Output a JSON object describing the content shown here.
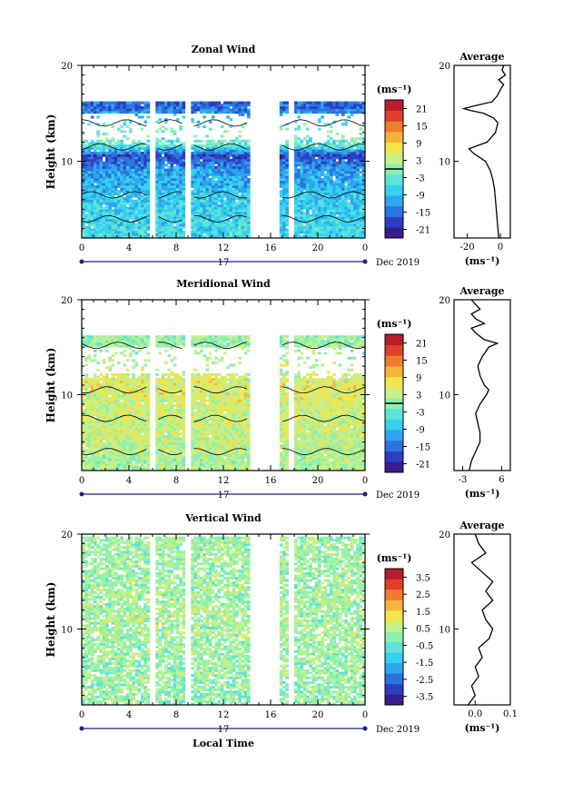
{
  "figure": {
    "shared_x_label": "Local Time",
    "date_label": "Dec 2019",
    "day_label": "17",
    "x_ticks": [
      "0",
      "4",
      "8",
      "12",
      "16",
      "20",
      "0"
    ]
  },
  "colors": {
    "colormap": [
      "#3b1c8c",
      "#2c3fc4",
      "#2a74e0",
      "#2fa6ec",
      "#34d1f0",
      "#5fe3d9",
      "#8ef0b0",
      "#c6f08a",
      "#f2e44a",
      "#f8b43a",
      "#f07c2e",
      "#e0402a",
      "#b81e2a"
    ],
    "contour": "#000000"
  },
  "chart_data": [
    {
      "type": "heatmap",
      "title": "Zonal Wind",
      "ylabel": "Height (km)",
      "y_ticks": [
        "20",
        "10"
      ],
      "ylim": [
        2,
        20
      ],
      "xlim": [
        0,
        24
      ],
      "colorbar_unit": "(ms⁻¹)",
      "colorbar_ticks": [
        "21",
        "15",
        "9",
        "3",
        "-3",
        "-9",
        "-15",
        "-21"
      ],
      "colorbar_range": [
        -24,
        24
      ],
      "data_gaps_hours": [
        [
          5.8,
          6.2
        ],
        [
          8.7,
          9.3
        ],
        [
          14.2,
          16.8
        ],
        [
          17.6,
          18.0
        ]
      ],
      "field_summary": [
        {
          "height_km": 3,
          "value": -6
        },
        {
          "height_km": 6,
          "value": -8
        },
        {
          "height_km": 9,
          "value": -12
        },
        {
          "height_km": 10.5,
          "value": -18
        },
        {
          "height_km": 11.5,
          "value": -4
        },
        {
          "height_km": 13,
          "value": 0
        },
        {
          "height_km": 15.5,
          "value": -16
        }
      ],
      "average_profile": {
        "title": "Average",
        "xlabel": "(ms⁻¹)",
        "x_ticks": [
          "-20",
          "0"
        ],
        "y_ticks": [
          "20",
          "10"
        ],
        "xlim": [
          -28,
          6
        ],
        "points": [
          [
            -1,
            2
          ],
          [
            -1.5,
            3
          ],
          [
            -2,
            4
          ],
          [
            -2.5,
            5
          ],
          [
            -3,
            6
          ],
          [
            -3.5,
            7
          ],
          [
            -4.5,
            8
          ],
          [
            -6,
            9
          ],
          [
            -9,
            10
          ],
          [
            -16,
            10.8
          ],
          [
            -19,
            11.3
          ],
          [
            -8,
            12
          ],
          [
            -3,
            13
          ],
          [
            -1.5,
            14
          ],
          [
            -4,
            14.5
          ],
          [
            -10,
            15
          ],
          [
            -18,
            15.3
          ],
          [
            -22,
            15.5
          ],
          [
            -15,
            15.8
          ],
          [
            -5,
            16.2
          ],
          [
            -2,
            16.8
          ],
          [
            0,
            17.5
          ],
          [
            2,
            18
          ],
          [
            -1,
            18.5
          ],
          [
            3,
            19
          ],
          [
            1,
            19.5
          ],
          [
            2,
            20
          ]
        ]
      }
    },
    {
      "type": "heatmap",
      "title": "Meridional Wind",
      "ylabel": "Height (km)",
      "y_ticks": [
        "20",
        "10"
      ],
      "ylim": [
        2,
        20
      ],
      "xlim": [
        0,
        24
      ],
      "colorbar_unit": "(ms⁻¹)",
      "colorbar_ticks": [
        "21",
        "15",
        "9",
        "3",
        "-3",
        "-9",
        "-15",
        "-21"
      ],
      "colorbar_range": [
        -24,
        24
      ],
      "data_gaps_hours": [
        [
          5.8,
          6.2
        ],
        [
          8.7,
          9.3
        ],
        [
          14.2,
          16.8
        ],
        [
          17.6,
          18.0
        ]
      ],
      "field_summary": [
        {
          "height_km": 3,
          "value": 2
        },
        {
          "height_km": 6,
          "value": 4
        },
        {
          "height_km": 9,
          "value": 5
        },
        {
          "height_km": 11,
          "value": 6
        },
        {
          "height_km": 13,
          "value": 3
        },
        {
          "height_km": 15.5,
          "value": 1
        }
      ],
      "average_profile": {
        "title": "Average",
        "xlabel": "(ms⁻¹)",
        "x_ticks": [
          "-3",
          "6"
        ],
        "y_ticks": [
          "20",
          "10"
        ],
        "xlim": [
          -5,
          8
        ],
        "points": [
          [
            -1.5,
            2
          ],
          [
            -1,
            3
          ],
          [
            0,
            4
          ],
          [
            1,
            5
          ],
          [
            1,
            6
          ],
          [
            0.5,
            7
          ],
          [
            0,
            8
          ],
          [
            1,
            9
          ],
          [
            2.5,
            10
          ],
          [
            3,
            10.5
          ],
          [
            2,
            11
          ],
          [
            1,
            12
          ],
          [
            0.5,
            13
          ],
          [
            1.5,
            14
          ],
          [
            3,
            15
          ],
          [
            5,
            15.4
          ],
          [
            2,
            15.8
          ],
          [
            0,
            16.5
          ],
          [
            -1,
            17
          ],
          [
            2,
            17.5
          ],
          [
            0,
            18
          ],
          [
            -1,
            18.5
          ],
          [
            1,
            19
          ],
          [
            0,
            19.5
          ],
          [
            -1,
            20
          ]
        ]
      }
    },
    {
      "type": "heatmap",
      "title": "Vertical Wind",
      "ylabel": "Height (km)",
      "y_ticks": [
        "20",
        "10"
      ],
      "ylim": [
        2,
        20
      ],
      "xlim": [
        0,
        24
      ],
      "colorbar_unit": "(ms⁻¹)",
      "colorbar_ticks": [
        "3.5",
        "2.5",
        "1.5",
        "0.5",
        "-0.5",
        "-1.5",
        "-2.5",
        "-3.5"
      ],
      "colorbar_range": [
        -4,
        4
      ],
      "data_gaps_hours": [
        [
          5.8,
          6.2
        ],
        [
          8.7,
          9.3
        ],
        [
          14.2,
          16.8
        ],
        [
          17.6,
          18.0
        ]
      ],
      "field_summary": [
        {
          "height_km": 4,
          "value": 0.1
        },
        {
          "height_km": 10,
          "value": 0.3
        },
        {
          "height_km": 16,
          "value": 0.2
        }
      ],
      "average_profile": {
        "title": "Average",
        "xlabel": "(ms⁻¹)",
        "x_ticks": [
          "0.0",
          "0.1"
        ],
        "y_ticks": [
          "20",
          "10"
        ],
        "xlim": [
          -0.06,
          0.1
        ],
        "points": [
          [
            -0.02,
            2
          ],
          [
            0,
            3
          ],
          [
            -0.01,
            4
          ],
          [
            0.01,
            5
          ],
          [
            0,
            6
          ],
          [
            0.02,
            7
          ],
          [
            0.01,
            8
          ],
          [
            0.04,
            9
          ],
          [
            0.05,
            10
          ],
          [
            0.03,
            11
          ],
          [
            0.02,
            12
          ],
          [
            0.05,
            13
          ],
          [
            0.03,
            14
          ],
          [
            0.05,
            15
          ],
          [
            0.02,
            16
          ],
          [
            -0.01,
            17
          ],
          [
            0.03,
            18
          ],
          [
            0.01,
            19
          ],
          [
            0,
            20
          ]
        ]
      }
    }
  ]
}
